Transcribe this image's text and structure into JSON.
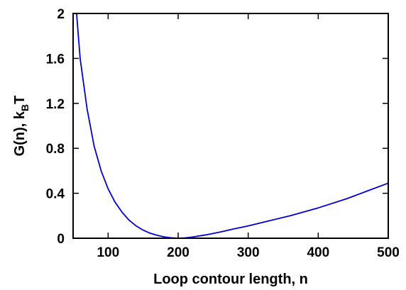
{
  "chart_data": {
    "type": "line",
    "title": "",
    "xlabel": "Loop contour length, n",
    "ylabel_main": "G(n), k",
    "ylabel_sub": "B",
    "ylabel_tail": "T",
    "xlim": [
      50,
      500
    ],
    "ylim": [
      0,
      2
    ],
    "xticks": [
      100,
      200,
      300,
      400,
      500
    ],
    "xtick_labels": [
      "100",
      "200",
      "300",
      "400",
      "500"
    ],
    "yticks": [
      0,
      0.4,
      0.8,
      1.2,
      1.6,
      2
    ],
    "ytick_labels": [
      "0",
      "0.4",
      "0.8",
      "1.2",
      "1.6",
      "2"
    ],
    "grid": false,
    "legend": "none",
    "series": [
      {
        "color": "#0000cc",
        "x": [
          55,
          60,
          70,
          80,
          90,
          100,
          110,
          120,
          130,
          140,
          150,
          160,
          170,
          180,
          190,
          200,
          210,
          220,
          240,
          260,
          280,
          300,
          330,
          360,
          400,
          440,
          470,
          500
        ],
        "y": [
          2.0,
          1.6,
          1.15,
          0.82,
          0.6,
          0.44,
          0.32,
          0.23,
          0.16,
          0.11,
          0.072,
          0.045,
          0.026,
          0.012,
          0.004,
          0.0,
          0.003,
          0.01,
          0.03,
          0.055,
          0.083,
          0.11,
          0.155,
          0.2,
          0.27,
          0.35,
          0.42,
          0.49
        ]
      }
    ]
  }
}
